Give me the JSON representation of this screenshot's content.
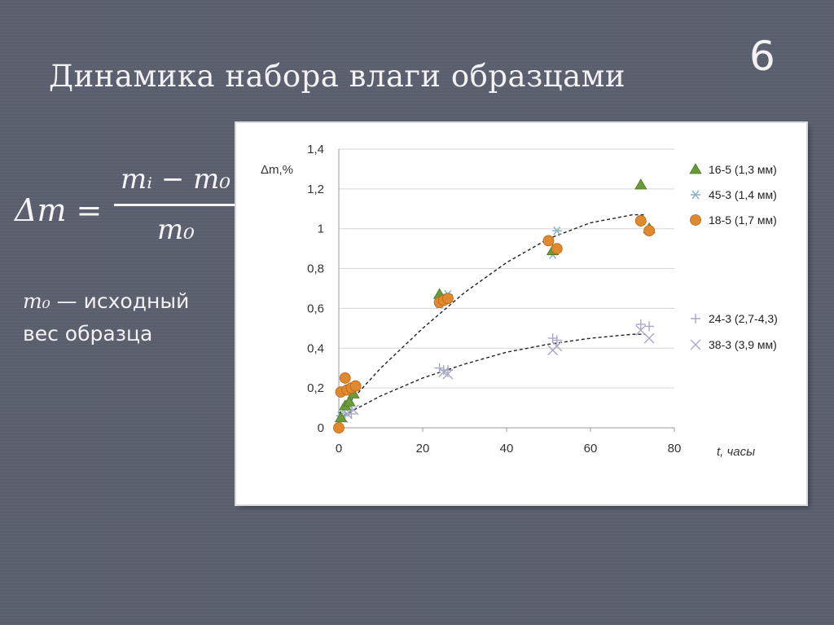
{
  "slide": {
    "title": "Динамика набора влаги образцами",
    "number": "6"
  },
  "formula": {
    "lhs": "Δm =",
    "numerator": "mᵢ − m₀",
    "denominator": "m₀"
  },
  "note": {
    "symbol": "m₀",
    "line1_rest": " — исходный",
    "line2": "вес образца"
  },
  "chart_data": {
    "type": "scatter",
    "ylabel": "Δm,%",
    "xlabel": "t, часы",
    "xlim": [
      0,
      80
    ],
    "ylim": [
      0,
      1.4
    ],
    "x_ticks": [
      "0",
      "20",
      "40",
      "60",
      "80"
    ],
    "y_ticks": [
      "0",
      "0,2",
      "0,4",
      "0,6",
      "0,8",
      "1",
      "1,2",
      "1,4"
    ],
    "grid": "horizontal",
    "legend_position": "right",
    "series": [
      {
        "name": "16-5 (1,3 мм)",
        "marker": "triangle",
        "color": "#6a9a3a",
        "points": [
          [
            0.5,
            0.05
          ],
          [
            1.5,
            0.11
          ],
          [
            2.5,
            0.13
          ],
          [
            3.5,
            0.17
          ],
          [
            24,
            0.67
          ],
          [
            51,
            0.89
          ],
          [
            72,
            1.22
          ],
          [
            74,
            1.0
          ]
        ]
      },
      {
        "name": "45-3 (1,4 мм)",
        "marker": "asterisk",
        "color": "#8ab4c8",
        "points": [
          [
            0.5,
            0.06
          ],
          [
            1.5,
            0.1
          ],
          [
            2.5,
            0.12
          ],
          [
            24,
            0.62
          ],
          [
            26,
            0.67
          ],
          [
            51,
            0.87
          ],
          [
            52,
            0.99
          ],
          [
            74,
            0.99
          ]
        ]
      },
      {
        "name": "18-5 (1,7 мм)",
        "marker": "circle",
        "color": "#e0892e",
        "points": [
          [
            0,
            0.0
          ],
          [
            0.5,
            0.18
          ],
          [
            1.5,
            0.25
          ],
          [
            2,
            0.19
          ],
          [
            3,
            0.2
          ],
          [
            4,
            0.21
          ],
          [
            24,
            0.63
          ],
          [
            25,
            0.64
          ],
          [
            26,
            0.65
          ],
          [
            50,
            0.94
          ],
          [
            52,
            0.9
          ],
          [
            72,
            1.04
          ],
          [
            74,
            0.99
          ]
        ]
      },
      {
        "name": "24-3 (2,7-4,3)",
        "marker": "plus",
        "color": "#a8a8c8",
        "points": [
          [
            0.5,
            0.04
          ],
          [
            1.5,
            0.06
          ],
          [
            3,
            0.07
          ],
          [
            24,
            0.3
          ],
          [
            25,
            0.29
          ],
          [
            26,
            0.29
          ],
          [
            51,
            0.45
          ],
          [
            52,
            0.44
          ],
          [
            72,
            0.52
          ],
          [
            74,
            0.51
          ]
        ]
      },
      {
        "name": "38-3 (3,9 мм)",
        "marker": "cross",
        "color": "#a8a8c8",
        "points": [
          [
            1,
            0.05
          ],
          [
            2,
            0.07
          ],
          [
            3.5,
            0.09
          ],
          [
            25,
            0.28
          ],
          [
            26,
            0.27
          ],
          [
            52,
            0.41
          ],
          [
            51,
            0.39
          ],
          [
            72,
            0.49
          ],
          [
            74,
            0.45
          ]
        ]
      }
    ],
    "trendlines": [
      {
        "points": [
          [
            0,
            0.07
          ],
          [
            10,
            0.3
          ],
          [
            20,
            0.5
          ],
          [
            30,
            0.68
          ],
          [
            40,
            0.83
          ],
          [
            50,
            0.95
          ],
          [
            60,
            1.03
          ],
          [
            70,
            1.07
          ],
          [
            73,
            1.07
          ]
        ]
      },
      {
        "points": [
          [
            0,
            0.05
          ],
          [
            10,
            0.16
          ],
          [
            20,
            0.25
          ],
          [
            30,
            0.32
          ],
          [
            40,
            0.38
          ],
          [
            50,
            0.42
          ],
          [
            60,
            0.45
          ],
          [
            70,
            0.47
          ],
          [
            73,
            0.47
          ]
        ]
      }
    ]
  }
}
